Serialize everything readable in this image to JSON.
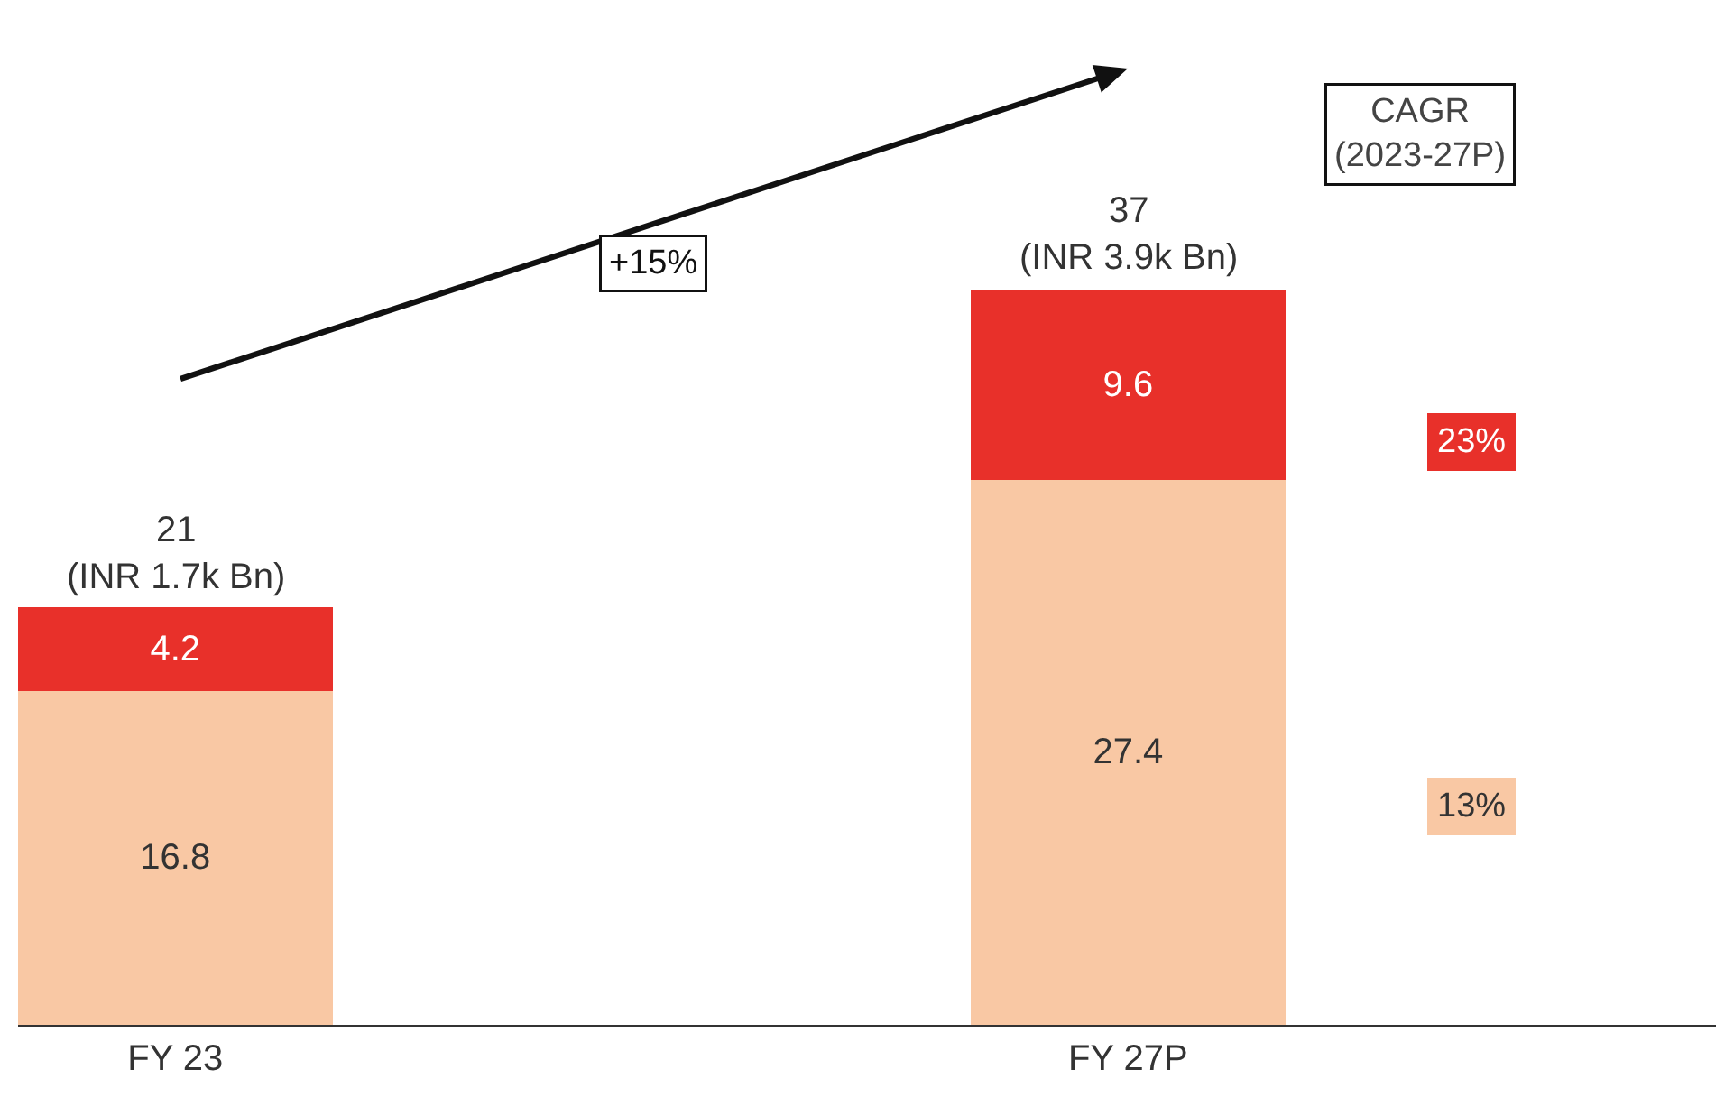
{
  "chart_data": {
    "type": "bar",
    "stacked": true,
    "categories": [
      "FY 23",
      "FY 27P"
    ],
    "series": [
      {
        "color": "#f9c8a4",
        "values": [
          16.8,
          27.4
        ]
      },
      {
        "color": "#e8302a",
        "values": [
          4.2,
          9.6
        ]
      }
    ],
    "data_labels": true,
    "totals": [
      "21\n(INR 1.7k Bn)",
      "37\n(INR 3.9k Bn)"
    ],
    "annotations": [
      "+15%",
      "CAGR\n(2023-27P)",
      "23%",
      "13%"
    ],
    "legend": false
  }
}
